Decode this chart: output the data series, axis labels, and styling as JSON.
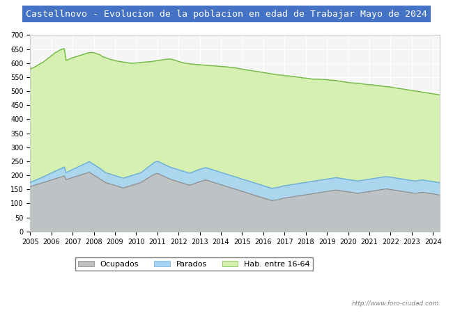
{
  "title": "Castellnovo - Evolucion de la poblacion en edad de Trabajar Mayo de 2024",
  "title_bg": "#4472c4",
  "title_color": "white",
  "ylabel": "",
  "xlabel": "",
  "ylim": [
    0,
    700
  ],
  "yticks": [
    0,
    50,
    100,
    150,
    200,
    250,
    300,
    350,
    400,
    450,
    500,
    550,
    600,
    650,
    700
  ],
  "x_start_year": 2005,
  "x_end_year": 2024,
  "watermark": "http://www.foro-ciudad.com",
  "legend_labels": [
    "Ocupados",
    "Parados",
    "Hab. entre 16-64"
  ],
  "color_ocupados": "#c0c0c0",
  "color_parados": "#a8d4f5",
  "color_hab": "#d5f0b0",
  "line_ocupados": "#888888",
  "line_parados": "#6aaed6",
  "line_hab": "#70b840",
  "hab_data": [
    580,
    582,
    585,
    588,
    592,
    596,
    600,
    602,
    608,
    612,
    618,
    622,
    628,
    632,
    638,
    640,
    645,
    648,
    650,
    652,
    610,
    612,
    615,
    618,
    620,
    622,
    624,
    626,
    628,
    630,
    632,
    634,
    636,
    638,
    638,
    638,
    636,
    634,
    632,
    630,
    625,
    622,
    620,
    618,
    615,
    613,
    612,
    610,
    608,
    607,
    606,
    605,
    604,
    603,
    602,
    601,
    600,
    600,
    600,
    601,
    601,
    602,
    603,
    603,
    604,
    604,
    605,
    605,
    606,
    607,
    608,
    609,
    610,
    611,
    612,
    613,
    614,
    615,
    615,
    614,
    612,
    610,
    608,
    606,
    604,
    602,
    601,
    600,
    599,
    598,
    597,
    596,
    596,
    595,
    595,
    594,
    594,
    593,
    593,
    592,
    592,
    591,
    591,
    590,
    590,
    589,
    589,
    588,
    588,
    587,
    587,
    586,
    585,
    585,
    584,
    583,
    582,
    580,
    579,
    578,
    577,
    576,
    575,
    574,
    573,
    572,
    571,
    570,
    569,
    568,
    567,
    566,
    565,
    564,
    563,
    562,
    561,
    560,
    559,
    558,
    558,
    557,
    556,
    555,
    555,
    554,
    554,
    553,
    552,
    551,
    550,
    549,
    548,
    547,
    547,
    546,
    545,
    544,
    543,
    543,
    543,
    543,
    542,
    542,
    542,
    541,
    541,
    540,
    540,
    539,
    539,
    538,
    537,
    536,
    535,
    534,
    533,
    532,
    531,
    530,
    530,
    529,
    529,
    528,
    527,
    527,
    526,
    525,
    524,
    524,
    523,
    523,
    522,
    521,
    521,
    520,
    519,
    518,
    517,
    516,
    516,
    515,
    514,
    513,
    512,
    511,
    510,
    509,
    508,
    507,
    506,
    505,
    504,
    503,
    502,
    501,
    500,
    499,
    498,
    497,
    496,
    495,
    494,
    493,
    492,
    491,
    490,
    489,
    488,
    487
  ],
  "parados_data": [
    175,
    178,
    180,
    183,
    186,
    188,
    191,
    194,
    197,
    200,
    203,
    206,
    209,
    212,
    215,
    218,
    221,
    224,
    227,
    230,
    210,
    213,
    216,
    219,
    222,
    225,
    228,
    231,
    234,
    237,
    240,
    243,
    246,
    249,
    245,
    241,
    237,
    233,
    229,
    225,
    220,
    215,
    210,
    208,
    206,
    204,
    202,
    200,
    198,
    196,
    194,
    192,
    190,
    192,
    194,
    196,
    198,
    200,
    202,
    204,
    206,
    208,
    210,
    215,
    220,
    225,
    230,
    235,
    240,
    245,
    248,
    250,
    248,
    245,
    242,
    239,
    236,
    233,
    230,
    228,
    226,
    224,
    222,
    220,
    218,
    216,
    214,
    212,
    210,
    208,
    210,
    212,
    215,
    218,
    220,
    222,
    224,
    226,
    228,
    226,
    224,
    222,
    220,
    218,
    216,
    214,
    212,
    210,
    208,
    206,
    204,
    202,
    200,
    198,
    196,
    194,
    192,
    190,
    188,
    186,
    184,
    182,
    180,
    178,
    176,
    174,
    172,
    170,
    168,
    166,
    164,
    162,
    160,
    158,
    156,
    154,
    155,
    156,
    157,
    158,
    160,
    162,
    163,
    164,
    165,
    166,
    167,
    168,
    169,
    170,
    171,
    172,
    173,
    174,
    175,
    176,
    177,
    178,
    179,
    180,
    181,
    182,
    183,
    184,
    185,
    186,
    187,
    188,
    189,
    190,
    191,
    192,
    191,
    190,
    189,
    188,
    187,
    186,
    185,
    184,
    183,
    182,
    181,
    180,
    181,
    182,
    183,
    184,
    185,
    186,
    187,
    188,
    189,
    190,
    191,
    192,
    193,
    194,
    195,
    196,
    195,
    194,
    193,
    192,
    191,
    190,
    189,
    188,
    187,
    186,
    185,
    184,
    183,
    182,
    181,
    180,
    181,
    182,
    183,
    184,
    183,
    182,
    181,
    180,
    179,
    178,
    177,
    176,
    175,
    174
  ],
  "ocupados_data": [
    160,
    162,
    164,
    166,
    168,
    170,
    172,
    174,
    176,
    178,
    180,
    182,
    184,
    186,
    188,
    190,
    192,
    194,
    196,
    198,
    185,
    187,
    189,
    191,
    193,
    195,
    197,
    199,
    201,
    203,
    205,
    207,
    209,
    211,
    207,
    203,
    199,
    195,
    191,
    187,
    183,
    179,
    175,
    173,
    171,
    169,
    167,
    165,
    163,
    161,
    159,
    157,
    155,
    157,
    159,
    161,
    163,
    165,
    167,
    169,
    171,
    173,
    175,
    179,
    183,
    187,
    191,
    195,
    199,
    203,
    205,
    207,
    205,
    202,
    199,
    196,
    193,
    190,
    187,
    185,
    183,
    181,
    179,
    177,
    175,
    173,
    171,
    169,
    167,
    165,
    167,
    169,
    171,
    174,
    176,
    178,
    180,
    182,
    184,
    182,
    180,
    178,
    176,
    174,
    172,
    170,
    168,
    166,
    164,
    162,
    160,
    158,
    156,
    154,
    152,
    150,
    148,
    146,
    144,
    142,
    140,
    138,
    136,
    134,
    132,
    130,
    128,
    126,
    124,
    122,
    120,
    118,
    116,
    114,
    112,
    110,
    111,
    112,
    113,
    114,
    116,
    118,
    119,
    120,
    121,
    122,
    123,
    124,
    125,
    126,
    127,
    128,
    129,
    130,
    131,
    132,
    133,
    134,
    135,
    136,
    137,
    138,
    139,
    140,
    141,
    142,
    143,
    144,
    145,
    146,
    147,
    148,
    147,
    146,
    145,
    144,
    143,
    142,
    141,
    140,
    139,
    138,
    137,
    136,
    137,
    138,
    139,
    140,
    141,
    142,
    143,
    144,
    145,
    146,
    147,
    148,
    149,
    150,
    151,
    152,
    151,
    150,
    149,
    148,
    147,
    146,
    145,
    144,
    143,
    142,
    141,
    140,
    139,
    138,
    137,
    136,
    137,
    138,
    139,
    140,
    139,
    138,
    137,
    136,
    135,
    134,
    133,
    132,
    131,
    130
  ]
}
